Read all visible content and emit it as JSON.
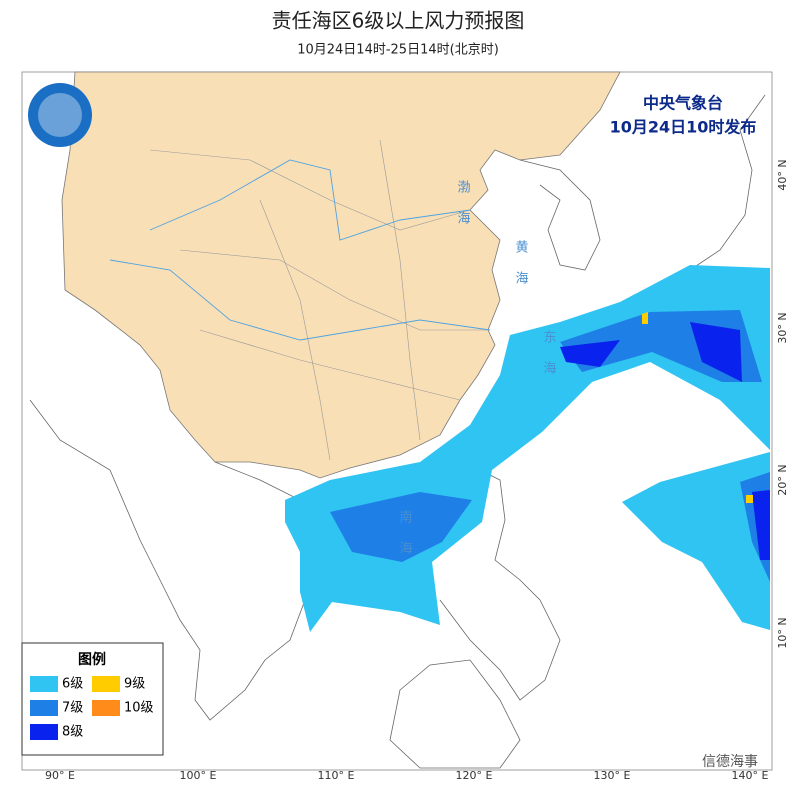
{
  "header": {
    "title": "责任海区6级以上风力预报图",
    "subtitle": "10月24日14时-25日14时(北京时)"
  },
  "issuer": {
    "agency": "中央气象台",
    "issued": "10月24日10时发布"
  },
  "legend": {
    "title": "图例",
    "items": [
      {
        "label": "6级",
        "color": "#2fc4f2"
      },
      {
        "label": "7级",
        "color": "#1e7fe6"
      },
      {
        "label": "8级",
        "color": "#0a22ee"
      },
      {
        "label": "9级",
        "color": "#ffcc00"
      },
      {
        "label": "10级",
        "color": "#ff8c1a"
      }
    ]
  },
  "sea_labels": [
    "渤海",
    "黄海",
    "东海",
    "南海"
  ],
  "lon_labels": [
    "90° E",
    "100° E",
    "110° E",
    "120° E",
    "130° E",
    "140° E"
  ],
  "lat_labels": [
    "10° N",
    "20° N",
    "30° N",
    "40° N"
  ],
  "watermark": "信德海事"
}
